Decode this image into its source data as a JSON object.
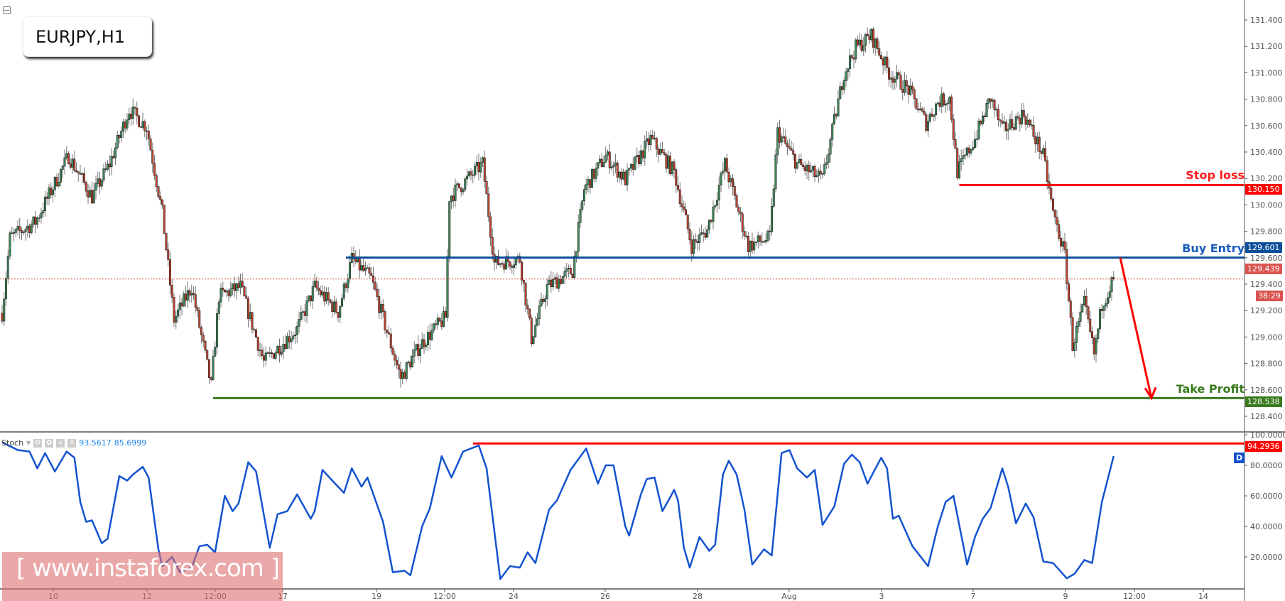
{
  "header": {
    "symbol_title": "EURJPY,H1"
  },
  "stoch_header": {
    "name": "Stoch",
    "value_k": "93.5617",
    "value_d": "85.6999",
    "buttons": [
      "⚙",
      "✿",
      "+",
      "X"
    ]
  },
  "watermark": {
    "text": "[ www.instaforex.com ]"
  },
  "colors": {
    "bull": "#3f8f5f",
    "bear": "#c8432e",
    "stop_loss": "#ff0000",
    "buy_entry": "#0d4f9a",
    "take_profit": "#3a7a1e",
    "stoch_line": "#1453cf",
    "last_price": "#d9534f"
  },
  "levels": {
    "stop_loss": {
      "label": "Stop loss",
      "price": 130.15,
      "price_text": "130.150"
    },
    "buy_entry": {
      "label": "Buy Entry",
      "price": 129.601,
      "price_text": "129.601"
    },
    "take_profit": {
      "label": "Take Profit",
      "price": 128.538,
      "price_text": "128.538"
    },
    "last_price": {
      "price": 129.439,
      "price_text": "129.439",
      "countdown": "38:29"
    },
    "stoch_level": {
      "value": 94.2936,
      "value_text": "94.2936"
    },
    "stoch_badge": "D"
  },
  "chart_data": [
    {
      "type": "candlestick",
      "title": "EURJPY,H1",
      "x_unit": "hourly bar index",
      "ylim": [
        128.3,
        131.5
      ],
      "y_ticks": [
        "131.400",
        "131.200",
        "131.000",
        "130.800",
        "130.600",
        "130.400",
        "130.200",
        "130.000",
        "129.800",
        "129.600",
        "129.400",
        "129.200",
        "129.000",
        "128.800",
        "128.600",
        "128.400"
      ],
      "x_tick_labels": [
        "10",
        "12",
        "12:00",
        "17",
        "19",
        "12:00",
        "24",
        "26",
        "28",
        "Aug",
        "3",
        "7",
        "9",
        "12:00",
        "14"
      ],
      "close_path": [
        [
          0,
          129.18
        ],
        [
          4,
          129.75
        ],
        [
          17,
          129.87
        ],
        [
          34,
          130.37
        ],
        [
          46,
          130.06
        ],
        [
          55,
          130.31
        ],
        [
          65,
          130.72
        ],
        [
          74,
          130.59
        ],
        [
          82,
          129.94
        ],
        [
          88,
          129.13
        ],
        [
          97,
          129.38
        ],
        [
          107,
          128.63
        ],
        [
          111,
          129.31
        ],
        [
          122,
          129.38
        ],
        [
          134,
          128.81
        ],
        [
          151,
          129.06
        ],
        [
          160,
          129.38
        ],
        [
          172,
          129.19
        ],
        [
          179,
          129.59
        ],
        [
          189,
          129.44
        ],
        [
          204,
          128.69
        ],
        [
          214,
          128.94
        ],
        [
          227,
          129.15
        ],
        [
          229,
          130.06
        ],
        [
          246,
          130.31
        ],
        [
          252,
          129.56
        ],
        [
          265,
          129.59
        ],
        [
          271,
          128.99
        ],
        [
          279,
          129.38
        ],
        [
          292,
          129.5
        ],
        [
          298,
          130.12
        ],
        [
          309,
          130.37
        ],
        [
          319,
          130.19
        ],
        [
          332,
          130.5
        ],
        [
          344,
          130.25
        ],
        [
          353,
          129.69
        ],
        [
          361,
          129.81
        ],
        [
          370,
          130.31
        ],
        [
          382,
          129.69
        ],
        [
          393,
          129.75
        ],
        [
          397,
          130.55
        ],
        [
          407,
          130.31
        ],
        [
          420,
          130.19
        ],
        [
          431,
          131.0
        ],
        [
          437,
          131.19
        ],
        [
          445,
          131.28
        ],
        [
          454,
          131.0
        ],
        [
          464,
          130.87
        ],
        [
          473,
          130.62
        ],
        [
          479,
          130.78
        ],
        [
          485,
          130.81
        ],
        [
          489,
          130.25
        ],
        [
          498,
          130.5
        ],
        [
          506,
          130.81
        ],
        [
          512,
          130.56
        ],
        [
          523,
          130.69
        ],
        [
          533,
          130.37
        ],
        [
          538,
          129.94
        ],
        [
          544,
          129.62
        ],
        [
          548,
          128.94
        ],
        [
          554,
          129.25
        ],
        [
          559,
          128.87
        ],
        [
          563,
          129.25
        ],
        [
          569,
          129.44
        ]
      ]
    },
    {
      "type": "line",
      "name": "Stoch",
      "ylim": [
        0,
        100
      ],
      "y_ticks": [
        "100.0000",
        "80.0000",
        "60.0000",
        "40.0000",
        "20.0000"
      ],
      "points": [
        [
          0,
          95
        ],
        [
          8,
          90
        ],
        [
          14,
          89
        ],
        [
          18,
          78
        ],
        [
          22,
          88
        ],
        [
          27,
          76
        ],
        [
          33,
          89
        ],
        [
          37,
          85
        ],
        [
          40,
          56
        ],
        [
          43,
          43
        ],
        [
          46,
          44
        ],
        [
          51,
          29
        ],
        [
          54,
          32
        ],
        [
          60,
          73
        ],
        [
          64,
          70
        ],
        [
          67,
          74
        ],
        [
          72,
          79
        ],
        [
          75,
          72
        ],
        [
          80,
          25
        ],
        [
          82,
          14
        ],
        [
          87,
          20
        ],
        [
          91,
          10
        ],
        [
          97,
          13
        ],
        [
          101,
          27
        ],
        [
          105,
          28
        ],
        [
          109,
          23
        ],
        [
          114,
          60
        ],
        [
          118,
          50
        ],
        [
          121,
          55
        ],
        [
          126,
          82
        ],
        [
          130,
          76
        ],
        [
          137,
          26
        ],
        [
          141,
          48
        ],
        [
          146,
          50
        ],
        [
          151,
          61
        ],
        [
          158,
          45
        ],
        [
          160,
          50
        ],
        [
          164,
          77
        ],
        [
          169,
          70
        ],
        [
          175,
          62
        ],
        [
          179,
          78
        ],
        [
          184,
          66
        ],
        [
          187,
          72
        ],
        [
          195,
          43
        ],
        [
          200,
          10
        ],
        [
          206,
          11
        ],
        [
          209,
          8
        ],
        [
          215,
          40
        ],
        [
          219,
          52
        ],
        [
          225,
          86
        ],
        [
          230,
          72
        ],
        [
          236,
          89
        ],
        [
          244,
          93
        ],
        [
          248,
          78
        ],
        [
          255,
          5.6
        ],
        [
          260,
          14
        ],
        [
          265,
          13
        ],
        [
          269,
          23
        ],
        [
          273,
          16
        ],
        [
          280,
          51
        ],
        [
          284,
          57
        ],
        [
          291,
          77
        ],
        [
          295,
          84
        ],
        [
          299,
          91
        ],
        [
          305,
          68
        ],
        [
          309,
          80
        ],
        [
          313,
          80
        ],
        [
          319,
          40
        ],
        [
          321,
          34
        ],
        [
          327,
          61
        ],
        [
          330,
          71
        ],
        [
          334,
          72
        ],
        [
          338,
          50
        ],
        [
          342,
          59
        ],
        [
          344,
          64
        ],
        [
          346,
          57
        ],
        [
          349,
          26
        ],
        [
          352,
          13
        ],
        [
          357,
          33
        ],
        [
          362,
          24
        ],
        [
          365,
          28
        ],
        [
          369,
          74
        ],
        [
          372,
          83
        ],
        [
          376,
          74
        ],
        [
          380,
          51
        ],
        [
          384,
          15
        ],
        [
          390,
          25
        ],
        [
          394,
          21
        ],
        [
          399,
          88
        ],
        [
          403,
          90
        ],
        [
          407,
          78
        ],
        [
          412,
          72
        ],
        [
          416,
          77
        ],
        [
          420,
          41
        ],
        [
          426,
          53
        ],
        [
          431,
          81
        ],
        [
          435,
          87
        ],
        [
          439,
          82
        ],
        [
          443,
          68
        ],
        [
          450,
          85
        ],
        [
          453,
          78
        ],
        [
          456,
          45
        ],
        [
          459,
          47
        ],
        [
          466,
          27
        ],
        [
          474,
          14
        ],
        [
          479,
          40
        ],
        [
          483,
          56
        ],
        [
          487,
          60
        ],
        [
          494,
          15
        ],
        [
          498,
          33
        ],
        [
          502,
          45
        ],
        [
          506,
          52
        ],
        [
          512,
          78
        ],
        [
          515,
          66
        ],
        [
          519,
          42
        ],
        [
          524,
          55
        ],
        [
          528,
          46
        ],
        [
          533,
          17
        ],
        [
          538,
          16
        ],
        [
          545,
          6
        ],
        [
          549,
          9
        ],
        [
          554,
          18
        ],
        [
          558,
          16
        ],
        [
          563,
          56
        ],
        [
          569,
          86
        ]
      ]
    }
  ]
}
